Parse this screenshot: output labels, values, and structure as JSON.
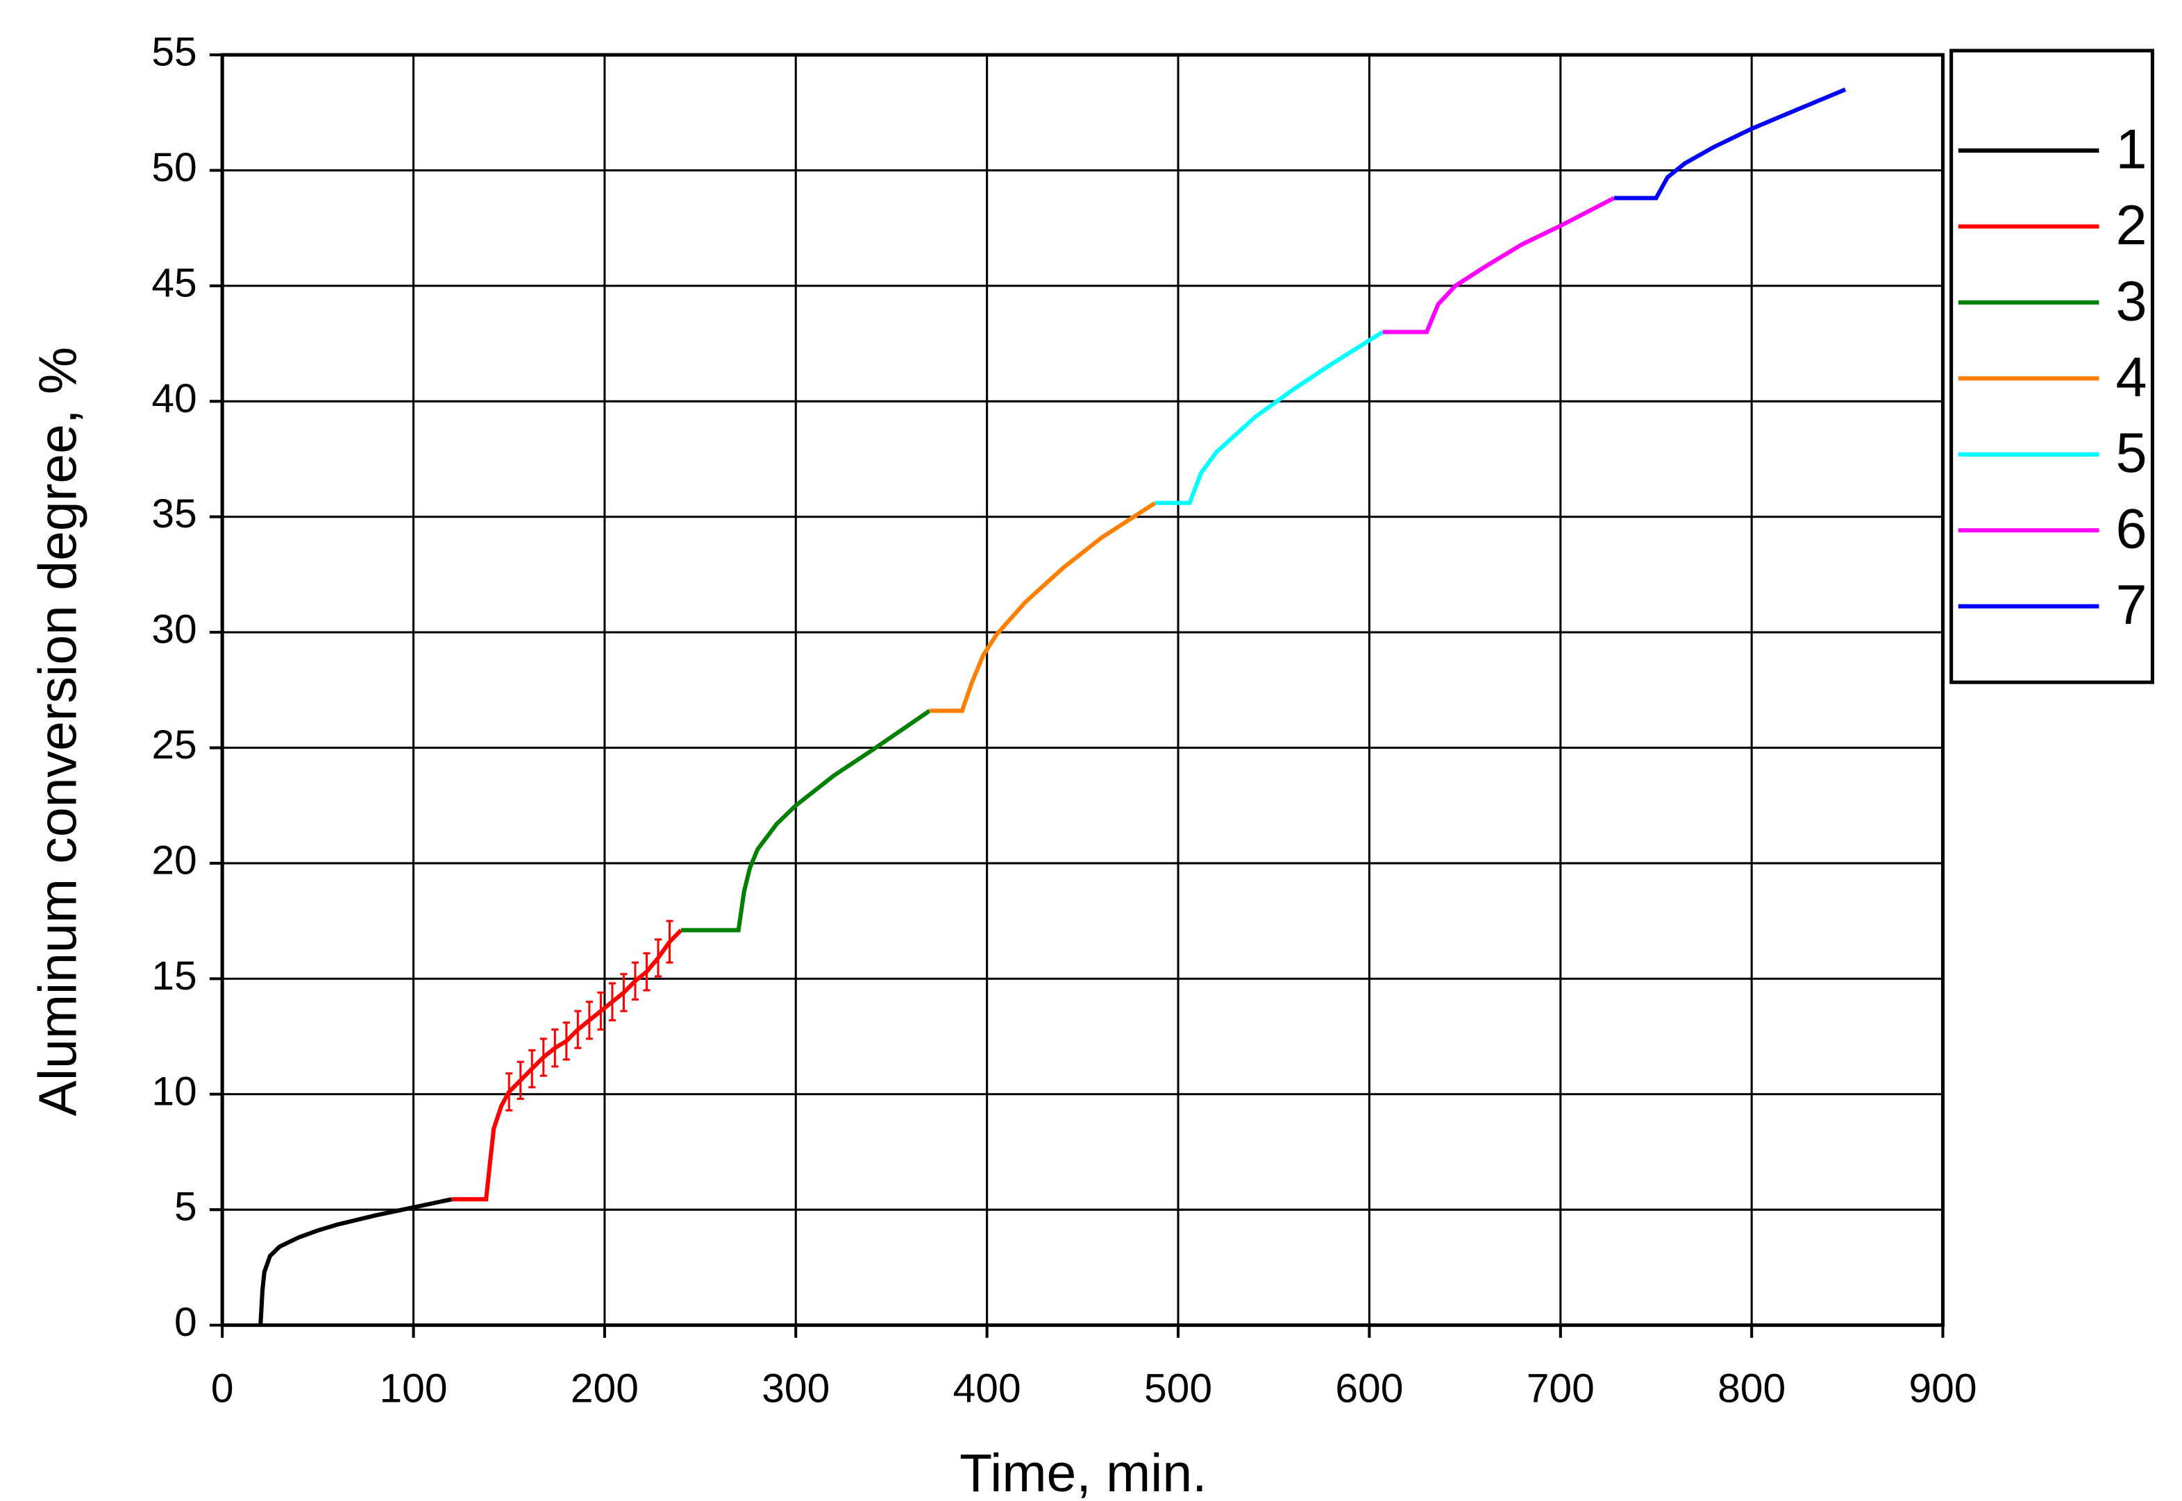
{
  "chart_data": {
    "type": "line",
    "x_label": "Time, min.",
    "y_label": "Aluminum conversion degree, %",
    "xlim": [
      0,
      900
    ],
    "ylim": [
      0,
      55
    ],
    "xticks": [
      0,
      100,
      200,
      300,
      400,
      500,
      600,
      700,
      800,
      900
    ],
    "yticks": [
      0,
      5,
      10,
      15,
      20,
      25,
      30,
      35,
      40,
      45,
      50,
      55
    ],
    "grid": true,
    "legend": "outside-right",
    "series": [
      {
        "name": "1",
        "color": "#000000",
        "x": [
          20,
          21,
          22,
          25,
          30,
          40,
          50,
          60,
          80,
          100,
          120
        ],
        "values": [
          0,
          1.5,
          2.3,
          3.0,
          3.4,
          3.8,
          4.1,
          4.35,
          4.75,
          5.1,
          5.45
        ]
      },
      {
        "name": "2",
        "color": "#ff0000",
        "x": [
          120,
          138,
          140,
          142,
          146,
          150,
          156,
          162,
          168,
          174,
          180,
          186,
          192,
          198,
          204,
          210,
          216,
          222,
          228,
          234,
          240
        ],
        "values": [
          5.45,
          5.45,
          7,
          8.5,
          9.5,
          10.1,
          10.6,
          11.1,
          11.6,
          12.0,
          12.3,
          12.8,
          13.2,
          13.6,
          14.0,
          14.4,
          14.9,
          15.3,
          15.9,
          16.6,
          17.1
        ],
        "errors": [
          null,
          null,
          null,
          null,
          null,
          0.8,
          0.8,
          0.8,
          0.8,
          0.8,
          0.8,
          0.8,
          0.8,
          0.8,
          0.8,
          0.8,
          0.8,
          0.8,
          0.8,
          0.9,
          null
        ]
      },
      {
        "name": "3",
        "color": "#008000",
        "x": [
          240,
          270,
          273,
          276,
          280,
          290,
          300,
          320,
          340,
          370
        ],
        "values": [
          17.1,
          17.1,
          18.8,
          19.8,
          20.6,
          21.7,
          22.5,
          23.8,
          24.9,
          26.6
        ]
      },
      {
        "name": "4",
        "color": "#ff8000",
        "x": [
          370,
          387,
          392,
          398,
          405,
          420,
          440,
          460,
          488
        ],
        "values": [
          26.6,
          26.6,
          27.8,
          29.0,
          29.9,
          31.3,
          32.8,
          34.1,
          35.6
        ]
      },
      {
        "name": "5",
        "color": "#00ffff",
        "x": [
          488,
          506,
          512,
          520,
          540,
          560,
          580,
          607
        ],
        "values": [
          35.6,
          35.6,
          36.9,
          37.8,
          39.3,
          40.5,
          41.6,
          43.0
        ]
      },
      {
        "name": "6",
        "color": "#ff00ff",
        "x": [
          607,
          630,
          636,
          645,
          660,
          680,
          700,
          728
        ],
        "values": [
          43.0,
          43.0,
          44.2,
          45.0,
          45.8,
          46.8,
          47.6,
          48.8
        ]
      },
      {
        "name": "7",
        "color": "#0000ff",
        "x": [
          728,
          750,
          756,
          765,
          780,
          800,
          820,
          849
        ],
        "values": [
          48.8,
          48.8,
          49.7,
          50.3,
          51.0,
          51.8,
          52.5,
          53.5
        ]
      }
    ]
  }
}
